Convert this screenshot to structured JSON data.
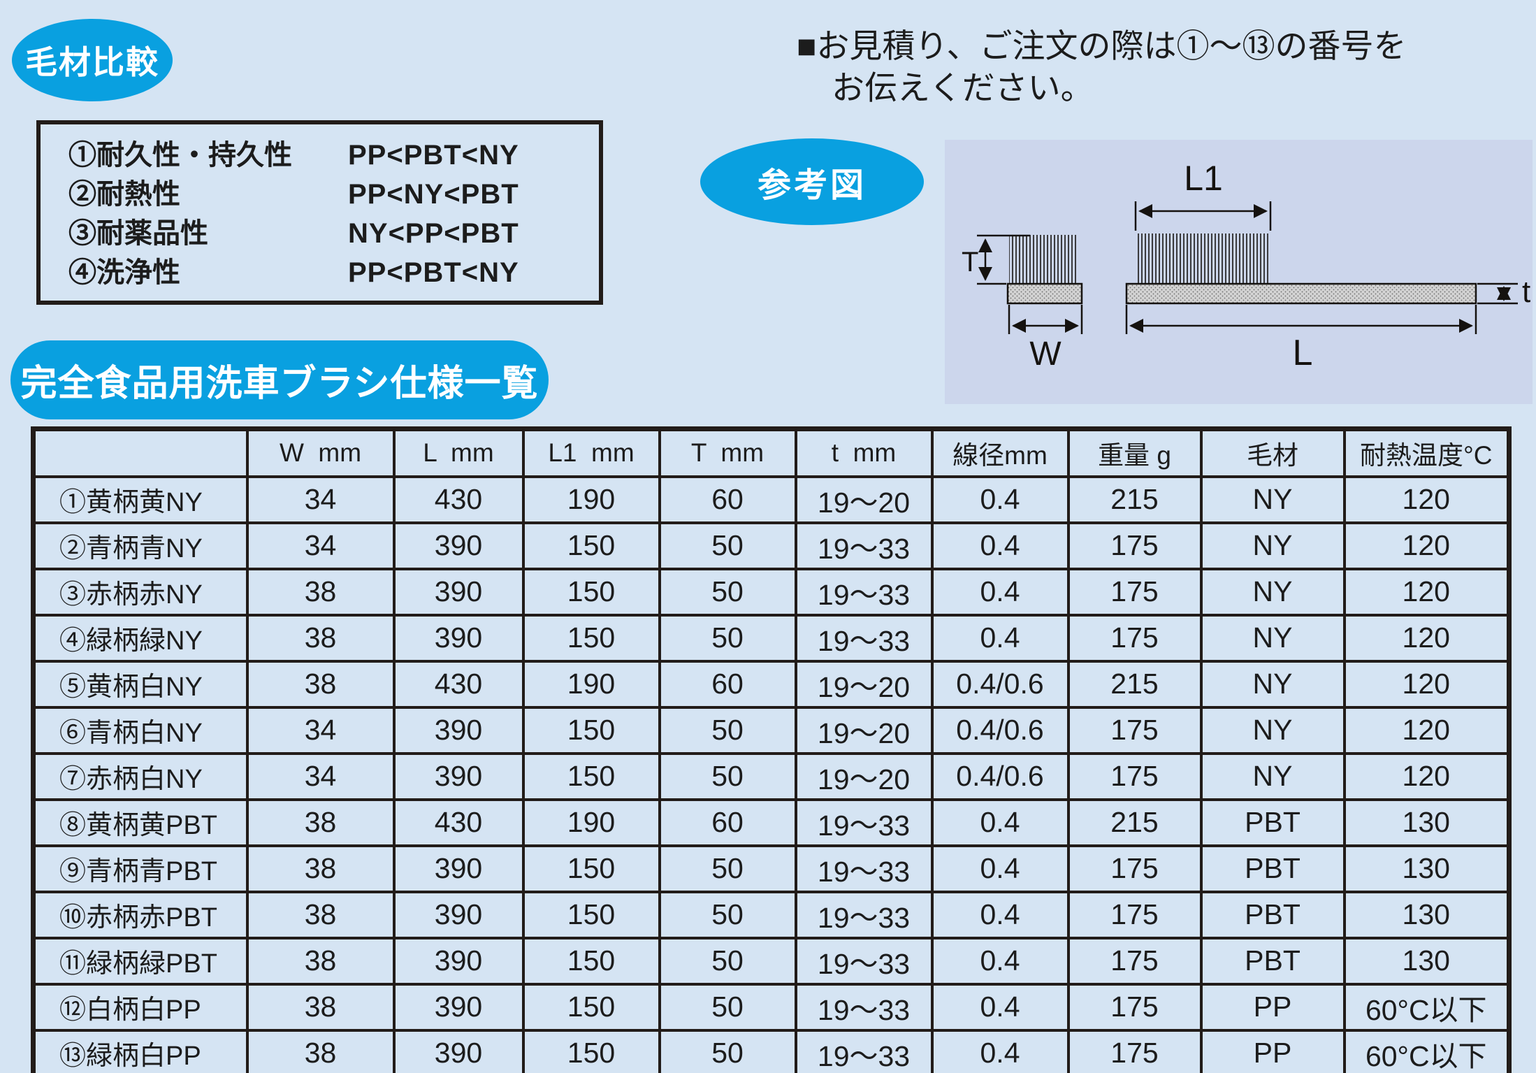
{
  "page": {
    "background": "#d5e4f3",
    "accent_blue": "#09a0e0",
    "panel_background": "#ccd6ec",
    "border_color": "#221c19"
  },
  "badges": {
    "material_comparison": "毛材比較",
    "reference_figure": "参考図",
    "spec_list_title": "完全食品用洗車ブラシ仕様一覧"
  },
  "note": {
    "line1": "■お見積り、ご注文の際は①〜⑬の番号を",
    "line2": "お伝えください。"
  },
  "comparison": {
    "items": [
      {
        "label": "①耐久性・持久性",
        "value": "PP<PBT<NY"
      },
      {
        "label": "②耐熱性",
        "value": "PP<NY<PBT"
      },
      {
        "label": "③耐薬品性",
        "value": "NY<PP<PBT"
      },
      {
        "label": "④洗浄性",
        "value": "PP<PBT<NY"
      }
    ]
  },
  "diagram": {
    "labels": {
      "l1": "L1",
      "t_upper": "T",
      "w": "W",
      "l": "L",
      "t_lower": "t"
    }
  },
  "table": {
    "headers": [
      "",
      "W  mm",
      "L  mm",
      "L1  mm",
      "T  mm",
      "t  mm",
      "線径mm",
      "重量 g",
      "毛材",
      "耐熱温度°C"
    ],
    "rows": [
      [
        "①黄柄黄NY",
        "34",
        "430",
        "190",
        "60",
        "19〜20",
        "0.4",
        "215",
        "NY",
        "120"
      ],
      [
        "②青柄青NY",
        "34",
        "390",
        "150",
        "50",
        "19〜33",
        "0.4",
        "175",
        "NY",
        "120"
      ],
      [
        "③赤柄赤NY",
        "38",
        "390",
        "150",
        "50",
        "19〜33",
        "0.4",
        "175",
        "NY",
        "120"
      ],
      [
        "④緑柄緑NY",
        "38",
        "390",
        "150",
        "50",
        "19〜33",
        "0.4",
        "175",
        "NY",
        "120"
      ],
      [
        "⑤黄柄白NY",
        "38",
        "430",
        "190",
        "60",
        "19〜20",
        "0.4/0.6",
        "215",
        "NY",
        "120"
      ],
      [
        "⑥青柄白NY",
        "34",
        "390",
        "150",
        "50",
        "19〜20",
        "0.4/0.6",
        "175",
        "NY",
        "120"
      ],
      [
        "⑦赤柄白NY",
        "34",
        "390",
        "150",
        "50",
        "19〜20",
        "0.4/0.6",
        "175",
        "NY",
        "120"
      ],
      [
        "⑧黄柄黄PBT",
        "38",
        "430",
        "190",
        "60",
        "19〜33",
        "0.4",
        "215",
        "PBT",
        "130"
      ],
      [
        "⑨青柄青PBT",
        "38",
        "390",
        "150",
        "50",
        "19〜33",
        "0.4",
        "175",
        "PBT",
        "130"
      ],
      [
        "⑩赤柄赤PBT",
        "38",
        "390",
        "150",
        "50",
        "19〜33",
        "0.4",
        "175",
        "PBT",
        "130"
      ],
      [
        "⑪緑柄緑PBT",
        "38",
        "390",
        "150",
        "50",
        "19〜33",
        "0.4",
        "175",
        "PBT",
        "130"
      ],
      [
        "⑫白柄白PP",
        "38",
        "390",
        "150",
        "50",
        "19〜33",
        "0.4",
        "175",
        "PP",
        "60°C以下"
      ],
      [
        "⑬緑柄白PP",
        "38",
        "390",
        "150",
        "50",
        "19〜33",
        "0.4",
        "175",
        "PP",
        "60°C以下"
      ]
    ]
  }
}
